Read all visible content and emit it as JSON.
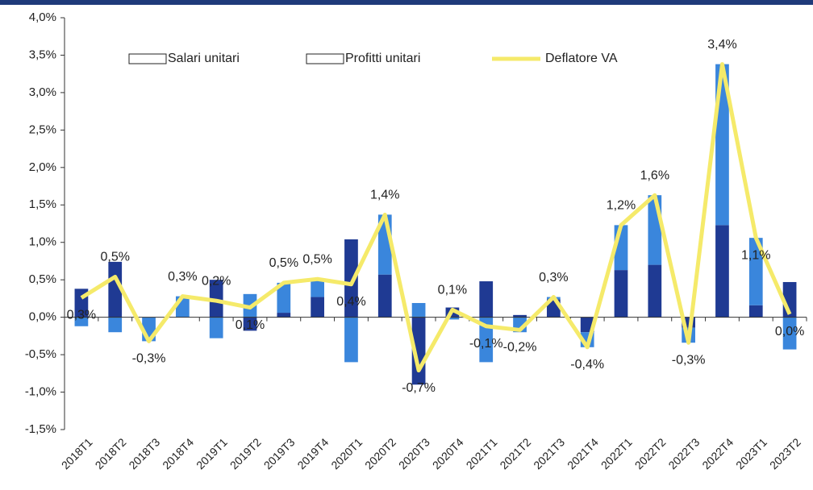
{
  "chart_data": {
    "type": "bar",
    "categories": [
      "2018T1",
      "2018T2",
      "2018T3",
      "2018T4",
      "2019T1",
      "2019T2",
      "2019T3",
      "2019T4",
      "2020T1",
      "2020T2",
      "2020T3",
      "2020T4",
      "2021T1",
      "2021T2",
      "2021T3",
      "2021T4",
      "2022T1",
      "2022T2",
      "2022T3",
      "2022T4",
      "2023T1",
      "2023T2"
    ],
    "series": [
      {
        "name": "Salari unitari",
        "type": "bar",
        "color": "#1f3a93",
        "values": [
          0.38,
          0.74,
          0,
          0,
          0.5,
          -0.18,
          0.06,
          0.27,
          1.04,
          0.57,
          -0.9,
          0.13,
          0.48,
          0.03,
          0.24,
          -0.2,
          0.63,
          0.7,
          -0.14,
          1.23,
          0.16,
          0.47
        ]
      },
      {
        "name": "Profitti unitari",
        "type": "bar",
        "color": "#3a86dc",
        "values": [
          -0.12,
          -0.2,
          -0.32,
          0.28,
          -0.28,
          0.31,
          0.4,
          0.24,
          -0.6,
          0.8,
          0.19,
          -0.03,
          -0.6,
          -0.2,
          0.03,
          -0.2,
          0.6,
          0.93,
          -0.2,
          2.15,
          0.9,
          -0.43
        ]
      },
      {
        "name": "Deflatore VA",
        "type": "line",
        "color": "#f5ea6a",
        "values": [
          0.26,
          0.54,
          -0.32,
          0.28,
          0.22,
          0.13,
          0.46,
          0.51,
          0.44,
          1.37,
          -0.71,
          0.1,
          -0.12,
          -0.17,
          0.27,
          -0.4,
          1.23,
          1.63,
          -0.34,
          3.38,
          1.06,
          0.04
        ],
        "value_labels": [
          "0,3%",
          "0,5%",
          "-0,3%",
          "0,3%",
          "0,2%",
          "0,1%",
          "0,5%",
          "0,5%",
          "0,4%",
          "1,4%",
          "-0,7%",
          "0,1%",
          "-0,1%",
          "-0,2%",
          "0,3%",
          "-0,4%",
          "1,2%",
          "1,6%",
          "-0,3%",
          "3,4%",
          "1,1%",
          "0,0%"
        ]
      }
    ],
    "ylim": [
      -1.5,
      4.0
    ],
    "yticks": [
      {
        "value": -1.5,
        "label": "-1,5%"
      },
      {
        "value": -1.0,
        "label": "-1,0%"
      },
      {
        "value": -0.5,
        "label": "-0,5%"
      },
      {
        "value": 0,
        "label": "0,0%"
      },
      {
        "value": 0.5,
        "label": "0,5%"
      },
      {
        "value": 1.0,
        "label": "1,0%"
      },
      {
        "value": 1.5,
        "label": "1,5%"
      },
      {
        "value": 2.0,
        "label": "2,0%"
      },
      {
        "value": 2.5,
        "label": "2,5%"
      },
      {
        "value": 3.0,
        "label": "3,0%"
      },
      {
        "value": 3.5,
        "label": "3,5%"
      },
      {
        "value": 4.0,
        "label": "4,0%"
      }
    ],
    "legend": "top"
  }
}
